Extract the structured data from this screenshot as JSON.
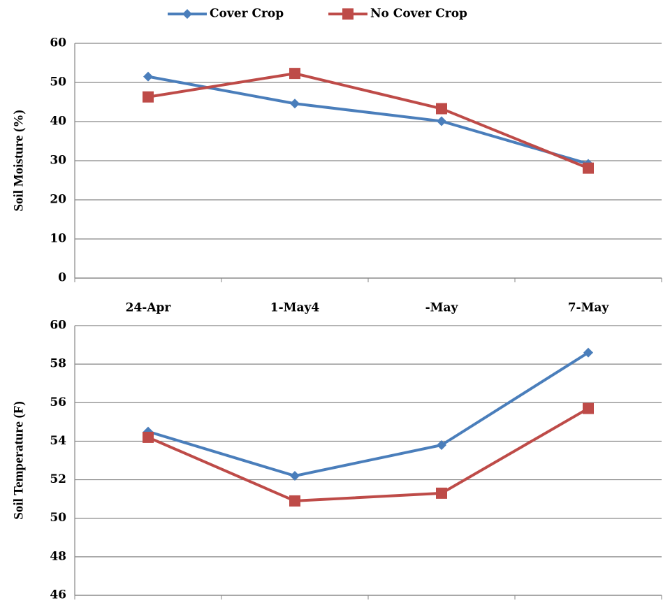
{
  "chart_data": [
    {
      "type": "line",
      "y_label": "Soil Moisture (%)",
      "legend": "top",
      "categories": [
        "24-Apr",
        "1-May4",
        "-May",
        "7-May"
      ],
      "series": [
        {
          "name": "Cover Crop",
          "color": "#4a7ebb",
          "values": [
            51.5,
            44.6,
            40.1,
            29.2
          ]
        },
        {
          "name": "No Cover Crop",
          "color": "#be4b48",
          "values": [
            46.3,
            52.3,
            43.3,
            28.1
          ]
        }
      ],
      "ylim": [
        0,
        60
      ],
      "yticks": [
        0,
        10,
        20,
        30,
        40,
        50,
        60
      ],
      "grid": true
    },
    {
      "type": "line",
      "y_label": "Soil Temperature (F)",
      "categories": [
        null,
        null,
        null,
        null
      ],
      "series": [
        {
          "color": "#4a7ebb",
          "values": [
            54.5,
            52.2,
            53.8,
            58.6
          ]
        },
        {
          "color": "#be4b48",
          "values": [
            54.2,
            50.9,
            51.3,
            55.7
          ]
        }
      ],
      "ylim": [
        46,
        60
      ],
      "yticks": [
        46,
        48,
        50,
        52,
        54,
        56,
        58,
        60
      ],
      "grid": true
    }
  ]
}
